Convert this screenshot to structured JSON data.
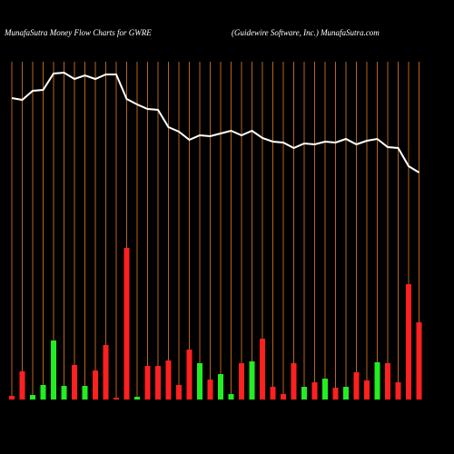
{
  "chart_data": {
    "type": "money-flow",
    "title": "MunafaSutra  Money  Flow  Charts for GWRE",
    "subtitle": "(Guidewire   Software,  Inc.) MunafaSutra.com",
    "ylim": [
      0,
      400
    ],
    "grid": true,
    "grid_color": "#b8651e",
    "line": {
      "color": "#ffffff",
      "values": [
        332,
        330,
        340,
        341,
        359,
        360,
        353,
        357,
        353,
        358,
        358,
        331,
        325,
        320,
        319,
        300,
        295,
        286,
        291,
        290,
        293,
        296,
        291,
        296,
        288,
        284,
        283,
        277,
        282,
        281,
        284,
        283,
        287,
        281,
        285,
        287,
        278,
        277,
        257,
        250
      ]
    },
    "bars": {
      "values": [
        4,
        31,
        5,
        16,
        65,
        15,
        38,
        15,
        32,
        60,
        2,
        167,
        3,
        37,
        37,
        43,
        16,
        55,
        40,
        22,
        28,
        6,
        40,
        42,
        67,
        14,
        6,
        40,
        14,
        19,
        23,
        13,
        14,
        30,
        21,
        41,
        40,
        19,
        127,
        85
      ],
      "colors": [
        "#ff2020",
        "#ff2020",
        "#22ee22",
        "#22ee22",
        "#22ee22",
        "#22ee22",
        "#ff2020",
        "#22ee22",
        "#ff2020",
        "#ff2020",
        "#ff2020",
        "#ff2020",
        "#22ee22",
        "#ff2020",
        "#ff2020",
        "#ff2020",
        "#ff2020",
        "#ff2020",
        "#22ee22",
        "#ff2020",
        "#22ee22",
        "#22ee22",
        "#ff2020",
        "#22ee22",
        "#ff2020",
        "#ff2020",
        "#ff2020",
        "#ff2020",
        "#22ee22",
        "#ff2020",
        "#22ee22",
        "#ff2020",
        "#22ee22",
        "#ff2020",
        "#ff2020",
        "#22ee22",
        "#ff2020",
        "#ff2020",
        "#ff2020",
        "#ff2020"
      ]
    }
  }
}
